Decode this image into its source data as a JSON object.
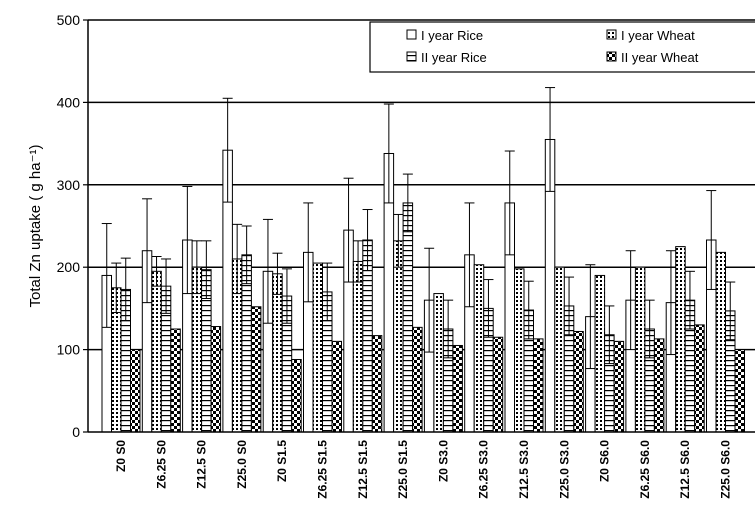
{
  "chart_data": {
    "type": "bar",
    "title": "",
    "xlabel": "",
    "ylabel": "Total Zn uptake ( g ha⁻¹)",
    "ylim": [
      0,
      500
    ],
    "yticks": [
      0,
      100,
      200,
      300,
      400,
      500
    ],
    "grid": "horizontal",
    "legend_position": "top-right",
    "categories": [
      "Z0 S0",
      "Z6.25 S0",
      "Z12.5 S0",
      "Z25.0 S0",
      "Z0 S1.5",
      "Z6.25 S1.5",
      "Z12.5 S1.5",
      "Z25.0 S1.5",
      "Z0 S3.0",
      "Z6.25 S3.0",
      "Z12.5 S3.0",
      "Z25.0 S3.0",
      "Z0 S6.0",
      "Z6.25 S6.0",
      "Z12.5 S6.0",
      "Z25.0 S6.0"
    ],
    "series": [
      {
        "name": "I year Rice",
        "pattern": "blank",
        "values": [
          190,
          220,
          233,
          342,
          195,
          218,
          245,
          338,
          160,
          215,
          278,
          355,
          140,
          160,
          157,
          233
        ],
        "errors": [
          63,
          63,
          65,
          63,
          63,
          60,
          63,
          60,
          63,
          63,
          63,
          63,
          63,
          60,
          63,
          60
        ]
      },
      {
        "name": "I year Wheat",
        "pattern": "dots",
        "values": [
          175,
          195,
          200,
          210,
          192,
          205,
          207,
          232,
          168,
          203,
          198,
          200,
          190,
          200,
          225,
          218
        ],
        "errors": [
          30,
          18,
          32,
          42,
          25,
          0,
          25,
          32,
          0,
          0,
          0,
          0,
          0,
          0,
          0,
          0
        ]
      },
      {
        "name": "II year Rice",
        "pattern": "hlines",
        "values": [
          173,
          177,
          197,
          215,
          165,
          170,
          233,
          278,
          125,
          150,
          148,
          153,
          118,
          125,
          160,
          147
        ],
        "errors": [
          38,
          33,
          35,
          35,
          33,
          35,
          37,
          35,
          35,
          35,
          35,
          35,
          35,
          35,
          35,
          35
        ]
      },
      {
        "name": "II year Wheat",
        "pattern": "checker",
        "values": [
          100,
          125,
          128,
          152,
          88,
          110,
          117,
          127,
          105,
          115,
          113,
          122,
          110,
          113,
          130,
          100
        ],
        "errors": [
          0,
          0,
          0,
          0,
          0,
          0,
          0,
          0,
          0,
          0,
          0,
          0,
          0,
          0,
          0,
          0
        ]
      }
    ],
    "legend_rows": [
      [
        "I year Rice",
        "I year Wheat"
      ],
      [
        "II year Rice",
        "II year Wheat"
      ]
    ]
  }
}
